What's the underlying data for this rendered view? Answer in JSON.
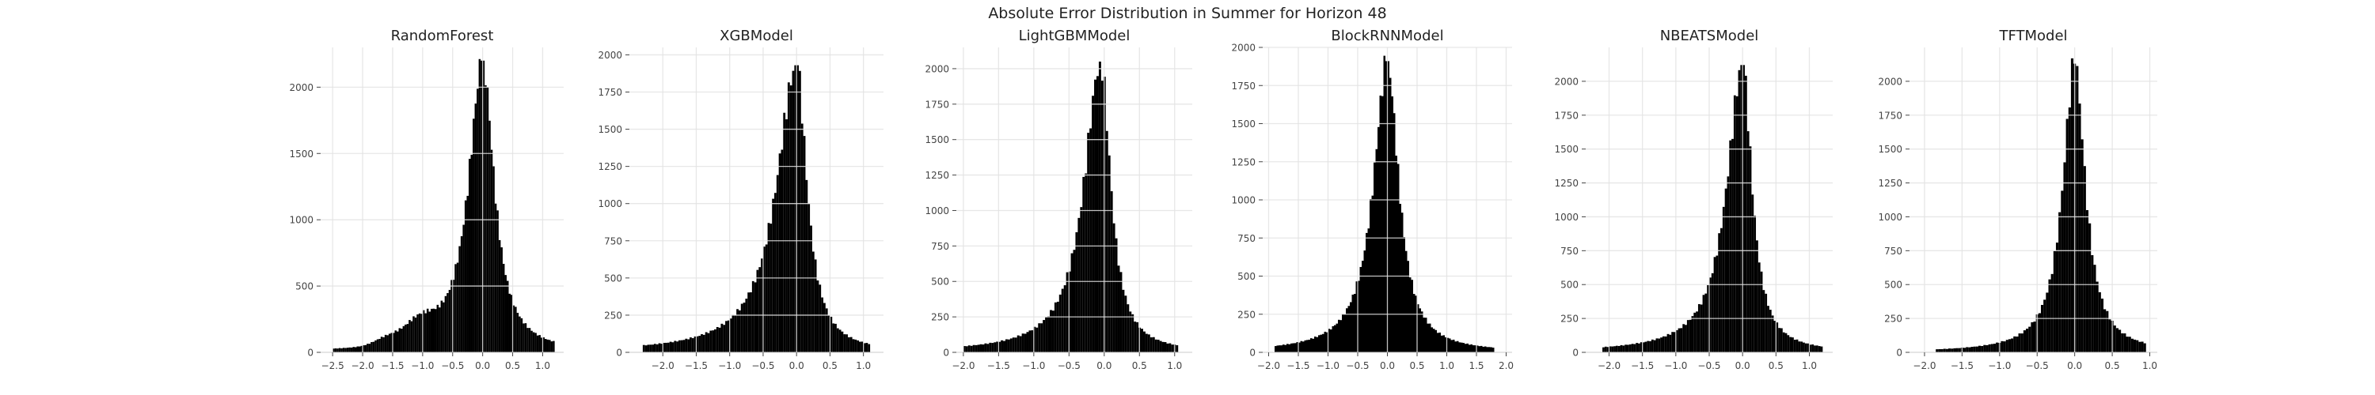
{
  "figure": {
    "title": "Absolute Error Distribution in Summer for Horizon 48"
  },
  "style": {
    "bar_color": "#000000",
    "grid_color": "#e3e3e3",
    "text_color": "#222222",
    "tick_color": "#444444"
  },
  "chart_data": [
    {
      "type": "histogram",
      "title": "RandomForest",
      "grid": true,
      "xlim": [
        -2.7,
        1.35
      ],
      "ylim": [
        0,
        2300
      ],
      "xticks": [
        -2.5,
        -2.0,
        -1.5,
        -1.0,
        -0.5,
        0.0,
        0.5,
        1.0
      ],
      "xtick_labels": [
        "−2.5",
        "−2.0",
        "−1.5",
        "−1.0",
        "−0.5",
        "0.0",
        "0.5",
        "1.0"
      ],
      "yticks": [
        0,
        500,
        1000,
        1500,
        2000
      ],
      "ytick_labels": [
        "0",
        "500",
        "1000",
        "1500",
        "2000"
      ],
      "peak_x": 0.0,
      "peak_count": 2200,
      "shape": {
        "left_spread": 0.33,
        "right_spread": 0.27,
        "range": [
          -2.5,
          1.2
        ],
        "humps": [
          {
            "center": -1.05,
            "width": 0.25,
            "count": 140
          },
          {
            "center": -1.6,
            "width": 0.2,
            "count": 50
          }
        ]
      }
    },
    {
      "type": "histogram",
      "title": "XGBModel",
      "grid": true,
      "xlim": [
        -2.5,
        1.3
      ],
      "ylim": [
        0,
        2050
      ],
      "xticks": [
        -2.0,
        -1.5,
        -1.0,
        -0.5,
        0.0,
        0.5,
        1.0
      ],
      "xtick_labels": [
        "−2.0",
        "−1.5",
        "−1.0",
        "−0.5",
        "0.0",
        "0.5",
        "1.0"
      ],
      "yticks": [
        0,
        250,
        500,
        750,
        1000,
        1250,
        1500,
        1750,
        2000
      ],
      "ytick_labels": [
        "0",
        "250",
        "500",
        "750",
        "1000",
        "1250",
        "1500",
        "1750",
        "2000"
      ],
      "peak_x": 0.0,
      "peak_count": 1930,
      "shape": {
        "left_spread": 0.42,
        "right_spread": 0.22,
        "range": [
          -2.3,
          1.1
        ],
        "humps": []
      }
    },
    {
      "type": "histogram",
      "title": "LightGBMModel",
      "grid": true,
      "xlim": [
        -2.1,
        1.25
      ],
      "ylim": [
        0,
        2150
      ],
      "xticks": [
        -2.0,
        -1.5,
        -1.0,
        -0.5,
        0.0,
        0.5,
        1.0
      ],
      "xtick_labels": [
        "−2.0",
        "−1.5",
        "−1.0",
        "−0.5",
        "0.0",
        "0.5",
        "1.0"
      ],
      "yticks": [
        0,
        250,
        500,
        750,
        1000,
        1250,
        1500,
        1750,
        2000
      ],
      "ytick_labels": [
        "0",
        "250",
        "500",
        "750",
        "1000",
        "1250",
        "1500",
        "1750",
        "2000"
      ],
      "peak_x": -0.05,
      "peak_count": 2050,
      "shape": {
        "left_spread": 0.33,
        "right_spread": 0.2,
        "range": [
          -2.0,
          1.05
        ],
        "humps": []
      }
    },
    {
      "type": "histogram",
      "title": "BlockRNNModel",
      "grid": true,
      "xlim": [
        -2.1,
        2.1
      ],
      "ylim": [
        0,
        2000
      ],
      "xticks": [
        -2.0,
        -1.5,
        -1.0,
        -0.5,
        0.0,
        0.5,
        1.0,
        1.5,
        2.0
      ],
      "xtick_labels": [
        "−2.0",
        "−1.5",
        "−1.0",
        "−0.5",
        "0.0",
        "0.5",
        "1.0",
        "1.5",
        "2.0"
      ],
      "yticks": [
        0,
        250,
        500,
        750,
        1000,
        1250,
        1500,
        1750,
        2000
      ],
      "ytick_labels": [
        "0",
        "250",
        "500",
        "750",
        "1000",
        "1250",
        "1500",
        "1750",
        "2000"
      ],
      "peak_x": 0.0,
      "peak_count": 1910,
      "shape": {
        "left_spread": 0.33,
        "right_spread": 0.27,
        "range": [
          -1.9,
          1.8
        ],
        "humps": []
      }
    },
    {
      "type": "histogram",
      "title": "NBEATSModel",
      "grid": true,
      "xlim": [
        -2.35,
        1.35
      ],
      "ylim": [
        0,
        2250
      ],
      "xticks": [
        -2.0,
        -1.5,
        -1.0,
        -0.5,
        0.0,
        0.5,
        1.0
      ],
      "xtick_labels": [
        "−2.0",
        "−1.5",
        "−1.0",
        "−0.5",
        "0.0",
        "0.5",
        "1.0"
      ],
      "yticks": [
        0,
        250,
        500,
        750,
        1000,
        1250,
        1500,
        1750,
        2000
      ],
      "ytick_labels": [
        "0",
        "250",
        "500",
        "750",
        "1000",
        "1250",
        "1500",
        "1750",
        "2000"
      ],
      "peak_x": 0.0,
      "peak_count": 2120,
      "shape": {
        "left_spread": 0.33,
        "right_spread": 0.2,
        "range": [
          -2.1,
          1.2
        ],
        "humps": []
      }
    },
    {
      "type": "histogram",
      "title": "TFTModel",
      "grid": true,
      "xlim": [
        -2.2,
        1.1
      ],
      "ylim": [
        0,
        2250
      ],
      "xticks": [
        -2.0,
        -1.5,
        -1.0,
        -0.5,
        0.0,
        0.5,
        1.0
      ],
      "xtick_labels": [
        "−2.0",
        "−1.5",
        "−1.0",
        "−0.5",
        "0.0",
        "0.5",
        "1.0"
      ],
      "yticks": [
        0,
        250,
        500,
        750,
        1000,
        1250,
        1500,
        1750,
        2000
      ],
      "ytick_labels": [
        "0",
        "250",
        "500",
        "750",
        "1000",
        "1250",
        "1500",
        "1750",
        "2000"
      ],
      "peak_x": 0.0,
      "peak_count": 2130,
      "shape": {
        "left_spread": 0.22,
        "right_spread": 0.2,
        "range": [
          -1.85,
          0.95
        ],
        "humps": []
      }
    }
  ]
}
